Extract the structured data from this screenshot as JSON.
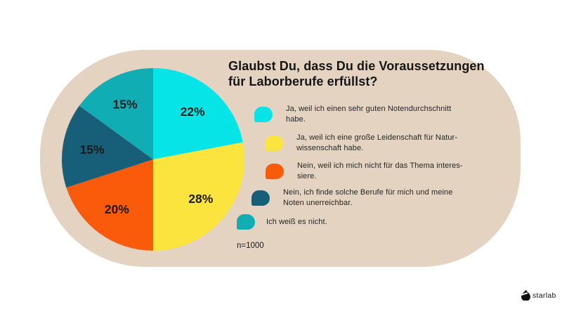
{
  "page": {
    "background_color": "#ffffff",
    "panel_color": "#E4D3C1",
    "text_color": "#1b1b1b"
  },
  "title": "Glaubst Du, dass Du die Voraussetzungen für Laborberufe erfüllst?",
  "sample_size": "n=1000",
  "logo": {
    "icon": "droplet-icon",
    "text": "starlab"
  },
  "chart_data": {
    "type": "pie",
    "title": "Glaubst Du, dass Du die Voraussetzungen für Laborberufe erfüllst?",
    "unit": "%",
    "total": 100,
    "start_angle_deg": 0,
    "direction": "clockwise",
    "legend_position": "right",
    "sample_size": "n=1000",
    "slices": [
      {
        "label": "Ja, weil ich einen sehr guten Notendurchschnitt habe.",
        "value": 22,
        "display": "22%",
        "color": "#06E4E8"
      },
      {
        "label": "Ja, weil ich eine große Leidenschaft für Naturwissenschaft habe.",
        "value": 28,
        "display": "28%",
        "color": "#FBE43D"
      },
      {
        "label": "Nein, weil ich mich nicht für das Thema interessiere.",
        "value": 20,
        "display": "20%",
        "color": "#F95B0B"
      },
      {
        "label": "Nein, ich finde solche Berufe für mich und meine Noten unerreichbar.",
        "value": 15,
        "display": "15%",
        "color": "#175F78"
      },
      {
        "label": "Ich weiß es nicht.",
        "value": 15,
        "display": "15%",
        "color": "#10ADB4"
      }
    ]
  },
  "legend": {
    "items": [
      {
        "line1": "Ja, weil ich einen sehr guten Notendurchschnitt",
        "line2": "habe."
      },
      {
        "line1": "Ja, weil ich eine große Leidenschaft für Natur-",
        "line2": "wissenschaft habe."
      },
      {
        "line1": "Nein, weil ich mich nicht für das Thema interes-",
        "line2": "siere."
      },
      {
        "line1": "Nein, ich finde solche Berufe für mich und meine",
        "line2": "Noten unerreichbar."
      },
      {
        "line1": "Ich weiß es nicht.",
        "line2": ""
      }
    ]
  }
}
